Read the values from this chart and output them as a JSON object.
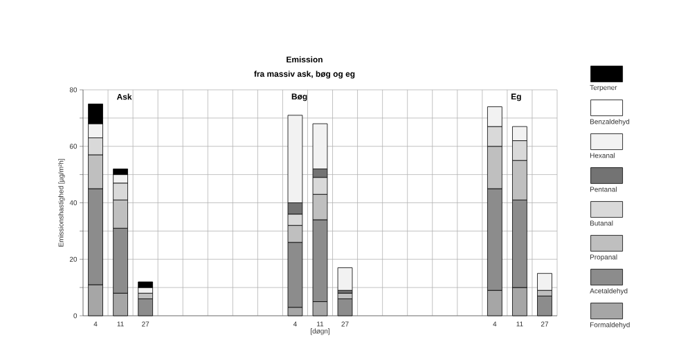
{
  "chart_data": {
    "type": "bar",
    "stacked": true,
    "title": "Emission",
    "subtitle": "fra massiv ask, bøg og eg",
    "xlabel": "[døgn]",
    "ylabel": "Emissionshastighed [µg/m²h]",
    "categories": [
      "4",
      "11",
      "27",
      null,
      null,
      null,
      null,
      null,
      "4",
      "11",
      "27",
      null,
      null,
      null,
      null,
      null,
      "4",
      "11",
      "27"
    ],
    "series": [
      {
        "name": "Formaldehyd",
        "color": "#a6a6a6",
        "values": [
          11,
          8,
          null,
          null,
          null,
          null,
          null,
          null,
          3,
          5,
          null,
          null,
          null,
          null,
          null,
          null,
          9,
          10,
          null
        ]
      },
      {
        "name": "Acetaldehyd",
        "color": "#8c8c8c",
        "values": [
          34,
          23,
          6,
          null,
          null,
          null,
          null,
          null,
          23,
          29,
          6,
          null,
          null,
          null,
          null,
          null,
          36,
          31,
          7
        ]
      },
      {
        "name": "Propanal",
        "color": "#bfbfbf",
        "values": [
          12,
          10,
          2,
          null,
          null,
          null,
          null,
          null,
          6,
          9,
          2,
          null,
          null,
          null,
          null,
          null,
          15,
          14,
          2
        ]
      },
      {
        "name": "Butanal",
        "color": "#d9d9d9",
        "values": [
          6,
          6,
          null,
          null,
          null,
          null,
          null,
          null,
          4,
          6,
          null,
          null,
          null,
          null,
          null,
          null,
          7,
          7,
          null
        ]
      },
      {
        "name": "Pentanal",
        "color": "#737373",
        "values": [
          null,
          null,
          null,
          null,
          null,
          null,
          null,
          null,
          4,
          3,
          1,
          null,
          null,
          null,
          null,
          null,
          null,
          null,
          null
        ]
      },
      {
        "name": "Hexanal",
        "color": "#f2f2f2",
        "values": [
          5,
          3,
          2,
          null,
          null,
          null,
          null,
          null,
          31,
          16,
          8,
          null,
          null,
          null,
          null,
          null,
          7,
          5,
          6
        ]
      },
      {
        "name": "Benzaldehyd",
        "color": "#ffffff",
        "values": [
          null,
          null,
          null,
          null,
          null,
          null,
          null,
          null,
          null,
          null,
          null,
          null,
          null,
          null,
          null,
          null,
          null,
          null,
          null
        ]
      },
      {
        "name": "Terpener",
        "color": "#000000",
        "values": [
          7,
          2,
          2,
          null,
          null,
          null,
          null,
          null,
          null,
          null,
          null,
          null,
          null,
          null,
          null,
          null,
          null,
          null,
          null
        ]
      }
    ],
    "ylim": [
      0,
      80
    ],
    "yticks": [
      0,
      {
        "value": 10,
        "label": null
      },
      20,
      {
        "value": 30,
        "label": null
      },
      40,
      {
        "value": 50,
        "label": null
      },
      60,
      {
        "value": 70,
        "label": null
      },
      80
    ],
    "grid": true,
    "legend": "right",
    "annotations": [
      "Ask",
      "Bøg",
      "Eg"
    ]
  }
}
